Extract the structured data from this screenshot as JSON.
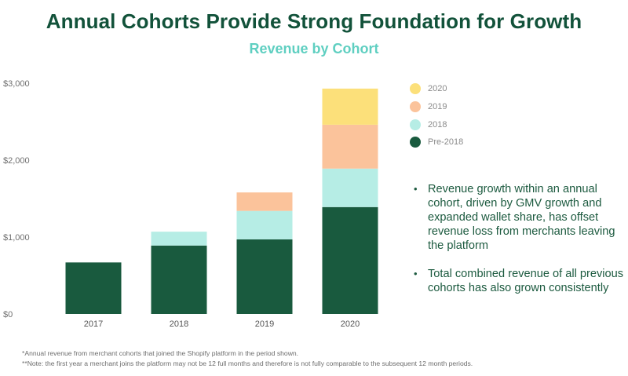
{
  "header": {
    "title": "Annual Cohorts Provide Strong Foundation for Growth",
    "subtitle": "Revenue by Cohort"
  },
  "chart_data": {
    "type": "bar",
    "stacked": true,
    "title": "Revenue by Cohort",
    "categories": [
      "2017",
      "2018",
      "2019",
      "2020"
    ],
    "series": [
      {
        "name": "Pre-2018",
        "color": "#195a3e",
        "values": [
          670,
          890,
          970,
          1390
        ]
      },
      {
        "name": "2018",
        "color": "#b6ede5",
        "values": [
          0,
          180,
          370,
          500
        ]
      },
      {
        "name": "2019",
        "color": "#fbc39b",
        "values": [
          0,
          0,
          240,
          570
        ]
      },
      {
        "name": "2020",
        "color": "#fce07a",
        "values": [
          0,
          0,
          0,
          470
        ]
      }
    ],
    "yticks": [
      0,
      1000,
      2000,
      3000
    ],
    "ytick_labels": [
      "$0",
      "$1,000",
      "$2,000",
      "$3,000"
    ],
    "ylim": [
      0,
      3000
    ],
    "xlabel": "",
    "ylabel": "",
    "grid": false,
    "legend_position": "top-right"
  },
  "legend": {
    "items": [
      {
        "label": "2020",
        "color": "#fce07a"
      },
      {
        "label": "2019",
        "color": "#fbc39b"
      },
      {
        "label": "2018",
        "color": "#b6ede5"
      },
      {
        "label": "Pre-2018",
        "color": "#195a3e"
      }
    ]
  },
  "bullets": [
    "Revenue growth within an annual cohort, driven by GMV growth and expanded wallet share, has offset revenue loss from merchants leaving the platform",
    "Total combined revenue of all previous cohorts has also grown consistently"
  ],
  "footnotes": [
    "*Annual revenue from merchant cohorts that joined the Shopify platform in the period shown.",
    "**Note: the first year a merchant joins the platform may not be 12 full months and therefore is not fully comparable to the subsequent 12 month periods."
  ]
}
